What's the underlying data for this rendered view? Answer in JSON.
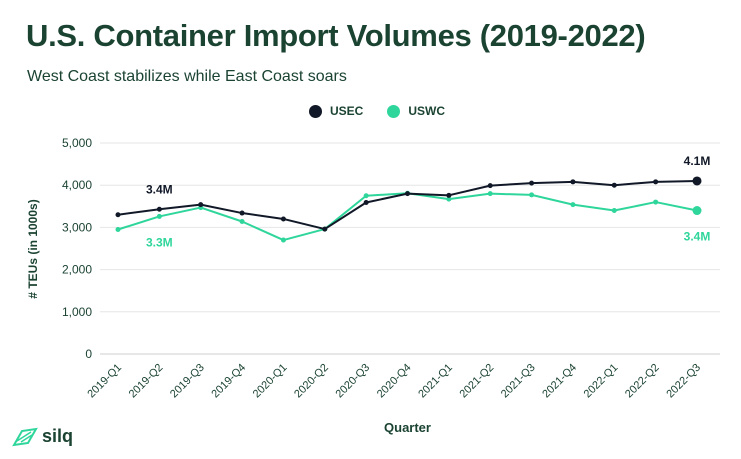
{
  "header": {
    "title": "U.S. Container Import Volumes (2019-2022)",
    "subtitle": "West Coast stabilizes while East Coast soars"
  },
  "legend": {
    "items": [
      {
        "label": "USEC",
        "color": "#111827"
      },
      {
        "label": "USWC",
        "color": "#2fd69b"
      }
    ]
  },
  "brand": {
    "name": "silq",
    "icon": "leaf-icon",
    "color": "#2fd69b"
  },
  "chart_data": {
    "type": "line",
    "xlabel": "Quarter",
    "ylabel": "# TEUs (in 1000s)",
    "ylim": [
      0,
      5000
    ],
    "yticks": [
      0,
      1000,
      2000,
      3000,
      4000,
      5000
    ],
    "ytick_labels": [
      "0",
      "1,000",
      "2,000",
      "3,000",
      "4,000",
      "5,000"
    ],
    "grid": "horizontal",
    "legend_position": "top-center",
    "categories": [
      "2019-Q1",
      "2019-Q2",
      "2019-Q3",
      "2019-Q4",
      "2020-Q1",
      "2020-Q2",
      "2020-Q3",
      "2020-Q4",
      "2021-Q1",
      "2021-Q2",
      "2021-Q3",
      "2021-Q4",
      "2022-Q1",
      "2022-Q2",
      "2022-Q3"
    ],
    "series": [
      {
        "name": "USEC",
        "color": "#111827",
        "values": [
          3300,
          3430,
          3540,
          3340,
          3200,
          2960,
          3590,
          3800,
          3760,
          3990,
          4050,
          4080,
          4000,
          4080,
          4100
        ]
      },
      {
        "name": "USWC",
        "color": "#2fd69b",
        "values": [
          2950,
          3260,
          3470,
          3140,
          2700,
          2960,
          3750,
          3810,
          3670,
          3800,
          3770,
          3540,
          3400,
          3600,
          3400
        ]
      }
    ],
    "annotations": [
      {
        "series": "USEC",
        "index": 1,
        "text": "3.4M"
      },
      {
        "series": "USWC",
        "index": 1,
        "text": "3.3M"
      },
      {
        "series": "USEC",
        "index": 14,
        "text": "4.1M"
      },
      {
        "series": "USWC",
        "index": 14,
        "text": "3.4M"
      }
    ]
  }
}
